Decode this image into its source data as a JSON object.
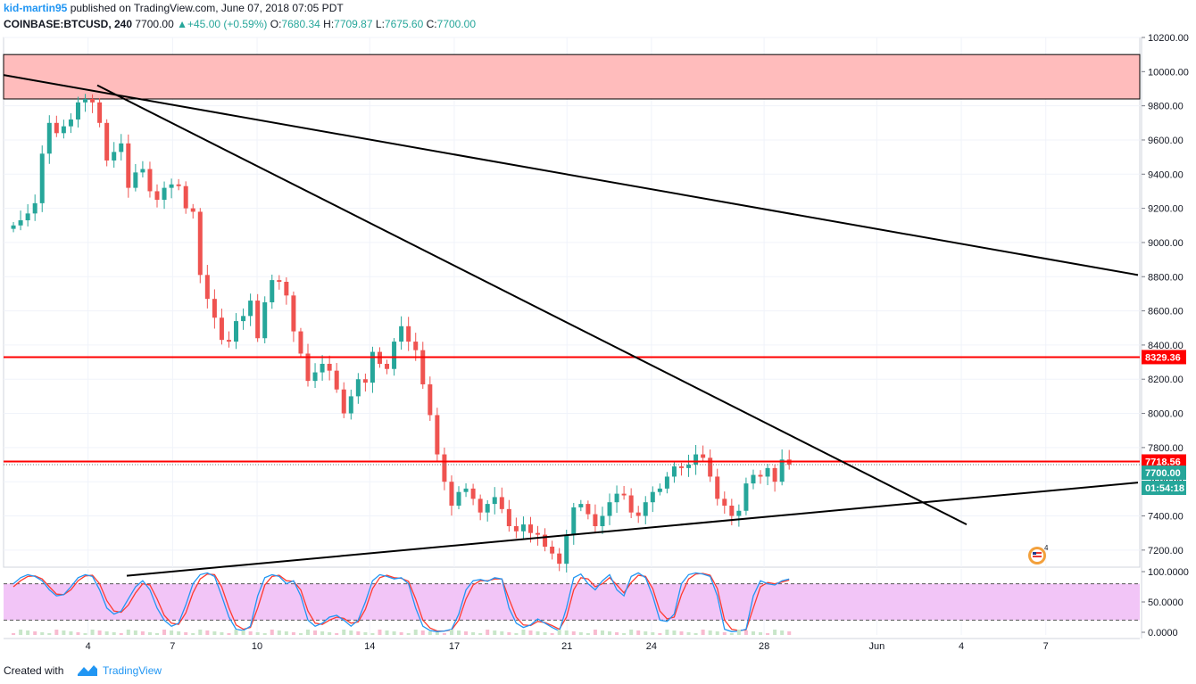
{
  "header": {
    "author": "kid-martin95",
    "published": "published on TradingView.com, June 07, 2018 07:05 PDT",
    "symbol": "COINBASE:BTCUSD, 240",
    "last": "7700.00",
    "change": "+45.00 (+0.59%)",
    "open_label": "O:",
    "open": "7680.34",
    "high_label": "H:",
    "high": "7709.87",
    "low_label": "L:",
    "low": "7675.60",
    "close_label": "C:",
    "close": "7700.00"
  },
  "footer": {
    "created_with": "Created with",
    "brand": "TradingView"
  },
  "colors": {
    "up": "#26a69a",
    "down": "#ef5350",
    "resistance_line": "#ff0000",
    "supply_zone": "#ffbcbc",
    "stoch_band": "#f2c5f7",
    "stoch_k": "#2196f3",
    "stoch_d": "#ff3b30"
  },
  "chart_data": {
    "type": "candlestick",
    "price_axis": {
      "ticks": [
        "10200.00",
        "10000.00",
        "9800.00",
        "9600.00",
        "9400.00",
        "9200.00",
        "9000.00",
        "8800.00",
        "8600.00",
        "8400.00",
        "8200.00",
        "8000.00",
        "7800.00",
        "7600.00",
        "7400.00",
        "7200.00"
      ],
      "ylim": [
        7100,
        10200
      ]
    },
    "time_axis": {
      "ticks": [
        "4",
        "7",
        "10",
        "14",
        "17",
        "21",
        "24",
        "28",
        "Jun",
        "4",
        "7"
      ]
    },
    "price_tags": [
      {
        "label": "8329.36",
        "kind": "level",
        "value": 8329.36
      },
      {
        "label": "7718.56",
        "kind": "level",
        "value": 7718.56
      },
      {
        "label": "7700.00",
        "kind": "last",
        "value": 7700.0
      },
      {
        "label": "01:54:18",
        "kind": "countdown",
        "value": 7615
      }
    ],
    "horizontal_levels": [
      8329.36,
      7718.56
    ],
    "supply_zone": [
      9840,
      10100
    ],
    "trendlines": [
      {
        "name": "long-downtrend",
        "from": [
          "May 1",
          9980
        ],
        "to": [
          "Jun 11",
          8810
        ]
      },
      {
        "name": "steep-downtrend",
        "from": [
          "May 5",
          9920
        ],
        "to": [
          "Jun 5",
          7350
        ]
      },
      {
        "name": "uptrend-support",
        "from": [
          "May 7",
          7050
        ],
        "to": [
          "Jun 11",
          7595
        ]
      }
    ],
    "closes": [
      9100,
      9130,
      9170,
      9230,
      9520,
      9700,
      9640,
      9680,
      9720,
      9820,
      9840,
      9820,
      9700,
      9480,
      9530,
      9580,
      9320,
      9410,
      9430,
      9300,
      9250,
      9320,
      9340,
      9330,
      9200,
      9180,
      8810,
      8670,
      8560,
      8430,
      8420,
      8540,
      8570,
      8660,
      8440,
      8650,
      8780,
      8770,
      8690,
      8480,
      8350,
      8190,
      8240,
      8290,
      8250,
      8140,
      8000,
      8100,
      8200,
      8180,
      8360,
      8290,
      8260,
      8420,
      8510,
      8420,
      8370,
      8170,
      7990,
      7760,
      7600,
      7460,
      7540,
      7560,
      7500,
      7420,
      7470,
      7510,
      7440,
      7340,
      7310,
      7350,
      7300,
      7290,
      7220,
      7180,
      7120,
      7290,
      7450,
      7470,
      7410,
      7340,
      7400,
      7480,
      7530,
      7520,
      7420,
      7400,
      7480,
      7540,
      7560,
      7630,
      7690,
      7680,
      7700,
      7760,
      7740,
      7630,
      7500,
      7460,
      7400,
      7430,
      7590,
      7640,
      7630,
      7680,
      7600,
      7730,
      7700
    ],
    "stochastic": {
      "levels": [
        "100.0000",
        "50.0000",
        "0.0000"
      ],
      "band": [
        20,
        80
      ],
      "k": [
        80,
        90,
        95,
        92,
        85,
        70,
        60,
        62,
        75,
        90,
        95,
        92,
        70,
        40,
        30,
        35,
        55,
        75,
        85,
        70,
        40,
        20,
        10,
        15,
        45,
        80,
        95,
        98,
        92,
        60,
        25,
        5,
        3,
        10,
        60,
        90,
        95,
        92,
        80,
        85,
        60,
        20,
        10,
        15,
        25,
        28,
        20,
        10,
        20,
        50,
        85,
        95,
        92,
        88,
        90,
        80,
        40,
        10,
        3,
        1,
        2,
        5,
        30,
        70,
        85,
        87,
        84,
        90,
        88,
        40,
        15,
        8,
        12,
        22,
        15,
        8,
        2,
        40,
        90,
        96,
        80,
        70,
        85,
        95,
        70,
        60,
        92,
        98,
        90,
        60,
        20,
        18,
        30,
        80,
        95,
        98,
        96,
        92,
        60,
        5,
        1,
        2,
        5,
        60,
        85,
        80,
        78,
        85,
        88
      ],
      "d": [
        75,
        85,
        92,
        93,
        88,
        75,
        63,
        62,
        70,
        85,
        93,
        94,
        80,
        52,
        35,
        33,
        45,
        65,
        80,
        78,
        55,
        28,
        15,
        13,
        32,
        65,
        88,
        96,
        95,
        75,
        40,
        12,
        5,
        8,
        40,
        78,
        92,
        94,
        85,
        84,
        70,
        35,
        15,
        13,
        20,
        25,
        23,
        15,
        17,
        38,
        72,
        90,
        94,
        90,
        89,
        84,
        55,
        20,
        7,
        2,
        2,
        4,
        20,
        55,
        78,
        85,
        85,
        88,
        88,
        55,
        25,
        12,
        11,
        18,
        16,
        11,
        5,
        25,
        70,
        90,
        88,
        75,
        80,
        90,
        78,
        65,
        82,
        94,
        92,
        72,
        35,
        22,
        25,
        62,
        88,
        96,
        97,
        94,
        72,
        20,
        5,
        3,
        4,
        40,
        75,
        82,
        80,
        83,
        86
      ]
    }
  }
}
